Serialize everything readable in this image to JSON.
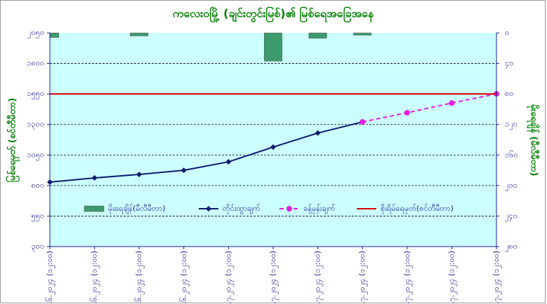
{
  "chart_data": {
    "type": "combo",
    "title": "ကလေးဝမြို့ (ချင်းတွင်းမြစ်)၏ မြစ်ရေအခြေအနေ",
    "y_label": "မြစ်ရေမှတ် (စင်တီမီတာ)",
    "y2_label": "မိုးရေချိန် (မီလီမီတာ)",
    "categories": [
      "၂၇.၆.၂၀၂၄ (၁၂:၀၀)",
      "၂၈.၆.၂၀၂၄ (၁၂:၀၀)",
      "၂၉.၆.၂၀၂၄ (၁၂:၀၀)",
      "၃၀.၆.၂၀၂၄ (၁၂:၀၀)",
      "၁.၇.၂၀၂၄ (၁၂:၀၀)",
      "၂.၇.၂၀၂၄ (၁၂:၀၀)",
      "၃.၇.၂၀၂၄ (၁၂:၀၀)",
      "၄.၇.၂၀၂၄ (၁၂:၀၀)",
      "၅.၇.၂၀၂၄ (၁၂:၀၀)",
      "၆.၇.၂၀၂၄ (၁၂:၀၀)",
      "၇.၇.၂၀၂၄ (၁၂:၀၀)"
    ],
    "ylim": [
      300,
      2050
    ],
    "yticks": [
      {
        "value": 300,
        "label": "၃၀၀"
      },
      {
        "value": 550,
        "label": "၅၅၀"
      },
      {
        "value": 800,
        "label": "၈၀၀"
      },
      {
        "value": 1050,
        "label": "၁၀၅၀"
      },
      {
        "value": 1300,
        "label": "၁၃၀၀"
      },
      {
        "value": 1550,
        "label": "၁၅၅၀"
      },
      {
        "value": 1800,
        "label": "၁၈၀၀"
      },
      {
        "value": 2050,
        "label": "၂၀၅၀"
      }
    ],
    "y2lim": [
      280,
      0
    ],
    "y2ticks": [
      {
        "value": 0,
        "label": "၀"
      },
      {
        "value": 40,
        "label": "၄၀"
      },
      {
        "value": 80,
        "label": "၈၀"
      },
      {
        "value": 120,
        "label": "၁၂၀"
      },
      {
        "value": 160,
        "label": "၁၆၀"
      },
      {
        "value": 200,
        "label": "၂၀၀"
      },
      {
        "value": 240,
        "label": "၂၄၀"
      },
      {
        "value": 280,
        "label": "၂၈၀"
      }
    ],
    "grid": true,
    "series": [
      {
        "name": "မိုးရေချိန်(မီလီမီတာ)",
        "type": "bar",
        "axis": "y2",
        "color": "#3c9a6c",
        "values": [
          6,
          null,
          4,
          null,
          null,
          37,
          7,
          3,
          null,
          null,
          null
        ]
      },
      {
        "name": "တိုင်းထွာချက်",
        "type": "line",
        "color": "#0d1a6e",
        "marker": "diamond",
        "values": [
          828,
          862,
          891,
          925,
          994,
          1115,
          1230,
          1321,
          null,
          null,
          null
        ]
      },
      {
        "name": "ခန့်မှန်းချက်",
        "type": "line",
        "color": "#e020e0",
        "marker": "circle",
        "dashed": true,
        "values": [
          null,
          null,
          null,
          null,
          null,
          null,
          null,
          1321,
          1396,
          1476,
          1551
        ]
      },
      {
        "name": "စိုးရိမ်ရေမှတ်(စင်တီမီတာ)",
        "type": "hline",
        "color": "#e00000",
        "value": 1550
      }
    ]
  }
}
